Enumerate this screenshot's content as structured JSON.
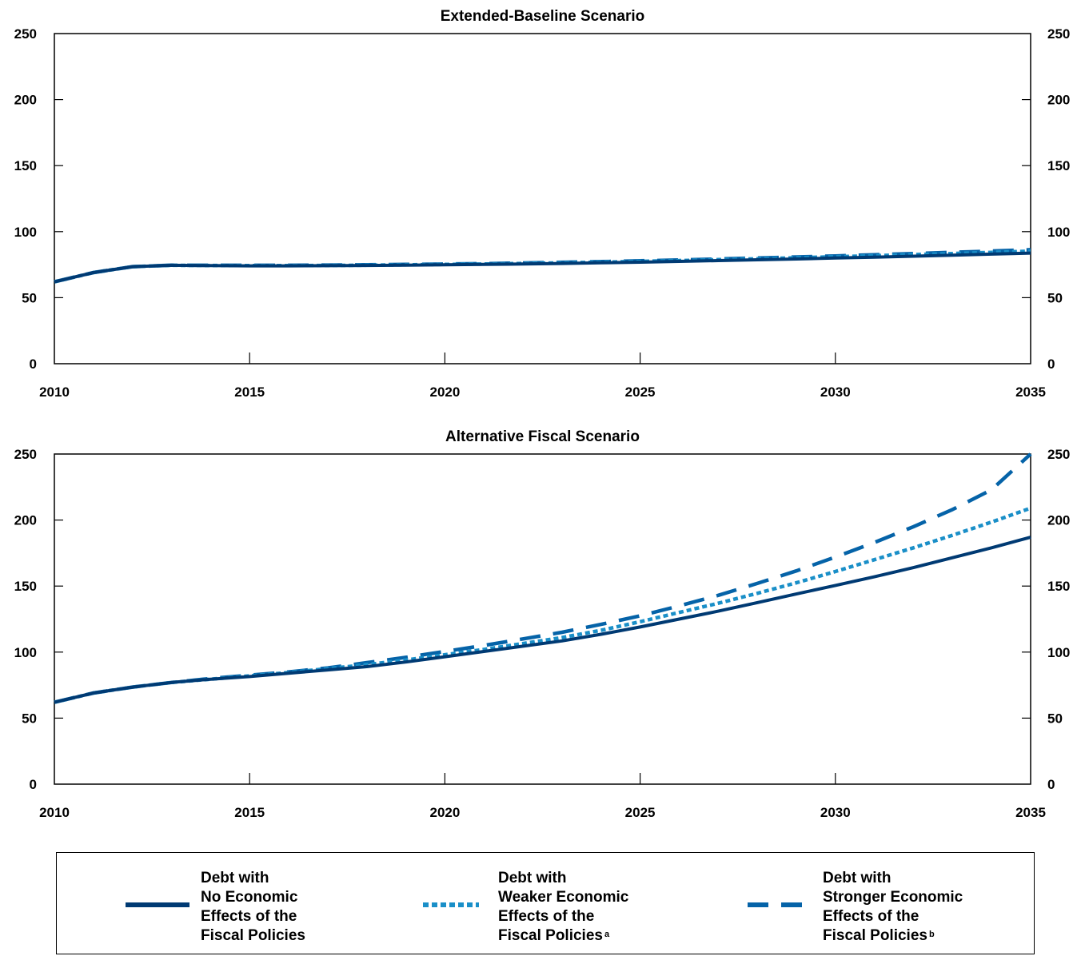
{
  "chart_data": [
    {
      "type": "line",
      "title": "Extended-Baseline Scenario",
      "xlim": [
        2010,
        2035
      ],
      "ylim": [
        0,
        250
      ],
      "x_ticks": [
        "2010",
        "2015",
        "2020",
        "2025",
        "2030",
        "2035"
      ],
      "y_ticks": [
        "0",
        "50",
        "100",
        "150",
        "200",
        "250"
      ],
      "grid": false,
      "x": [
        2010,
        2011,
        2012,
        2013,
        2014,
        2015,
        2016,
        2017,
        2018,
        2019,
        2020,
        2021,
        2022,
        2023,
        2024,
        2025,
        2026,
        2027,
        2028,
        2029,
        2030,
        2031,
        2032,
        2033,
        2034,
        2035
      ],
      "series": [
        {
          "key": "none",
          "values": [
            62,
            69,
            73.5,
            74.5,
            74.3,
            74.1,
            74.1,
            74.2,
            74.4,
            74.6,
            74.9,
            75.2,
            75.5,
            75.9,
            76.4,
            76.9,
            77.5,
            78.1,
            78.7,
            79.3,
            80.0,
            80.7,
            81.4,
            82.2,
            83.0,
            83.8
          ]
        },
        {
          "key": "weaker",
          "values": [
            62,
            69,
            73.5,
            74.5,
            74.4,
            74.3,
            74.3,
            74.4,
            74.6,
            74.9,
            75.2,
            75.5,
            75.9,
            76.4,
            76.9,
            77.5,
            78.1,
            78.8,
            79.5,
            80.2,
            81.0,
            81.8,
            82.6,
            83.4,
            84.3,
            85.2
          ]
        },
        {
          "key": "stronger",
          "values": [
            62,
            69,
            73.5,
            74.6,
            74.5,
            74.5,
            74.5,
            74.7,
            74.9,
            75.2,
            75.5,
            75.8,
            76.3,
            76.8,
            77.3,
            77.9,
            78.6,
            79.3,
            80.0,
            80.8,
            81.6,
            82.5,
            83.4,
            84.3,
            85.3,
            86.3
          ]
        }
      ]
    },
    {
      "type": "line",
      "title": "Alternative Fiscal Scenario",
      "xlim": [
        2010,
        2035
      ],
      "ylim": [
        0,
        250
      ],
      "x_ticks": [
        "2010",
        "2015",
        "2020",
        "2025",
        "2030",
        "2035"
      ],
      "y_ticks": [
        "0",
        "50",
        "100",
        "150",
        "200",
        "250"
      ],
      "grid": false,
      "x": [
        2010,
        2011,
        2012,
        2013,
        2014,
        2015,
        2016,
        2017,
        2018,
        2019,
        2020,
        2021,
        2022,
        2023,
        2024,
        2025,
        2026,
        2027,
        2028,
        2029,
        2030,
        2031,
        2032,
        2033,
        2034,
        2035
      ],
      "series": [
        {
          "key": "none",
          "values": [
            62,
            69,
            73.5,
            77,
            79.5,
            81.5,
            84,
            86.5,
            89,
            92.5,
            96.5,
            100.5,
            104.5,
            108.5,
            113.5,
            119,
            125,
            131,
            137.5,
            144,
            150.5,
            157,
            164,
            171.5,
            179,
            187
          ]
        },
        {
          "key": "weaker",
          "values": [
            62,
            69,
            73.5,
            77,
            79.5,
            82,
            84.5,
            87.5,
            90.5,
            94,
            98,
            102,
            106.5,
            111,
            116.5,
            123,
            130,
            137,
            144.5,
            152.5,
            161,
            170,
            179,
            188.5,
            198.5,
            209
          ]
        },
        {
          "key": "stronger",
          "values": [
            62,
            69,
            73.5,
            77,
            80,
            82.5,
            85,
            88,
            92,
            96,
            100.5,
            105,
            110,
            115,
            121,
            127.5,
            135,
            143,
            152,
            161.5,
            172,
            183,
            195,
            208,
            223,
            250
          ]
        }
      ]
    }
  ],
  "legend": {
    "placement": "bottom",
    "items": [
      {
        "key": "none",
        "lines": [
          "Debt with",
          "No Economic",
          "Effects of the",
          "Fiscal Policies"
        ],
        "note": "",
        "color": "#003a73",
        "style": "solid"
      },
      {
        "key": "weaker",
        "lines": [
          "Debt with",
          "Weaker Economic",
          "Effects of the",
          "Fiscal Policies"
        ],
        "note": "a",
        "color": "#1a8fc8",
        "style": "dotted"
      },
      {
        "key": "stronger",
        "lines": [
          "Debt with",
          "Stronger Economic",
          "Effects of the",
          "Fiscal Policies"
        ],
        "note": "b",
        "color": "#0563a8",
        "style": "dashed"
      }
    ]
  },
  "colors": {
    "axis": "#000000",
    "none": "#003a73",
    "weaker": "#1a8fc8",
    "stronger": "#0563a8"
  }
}
